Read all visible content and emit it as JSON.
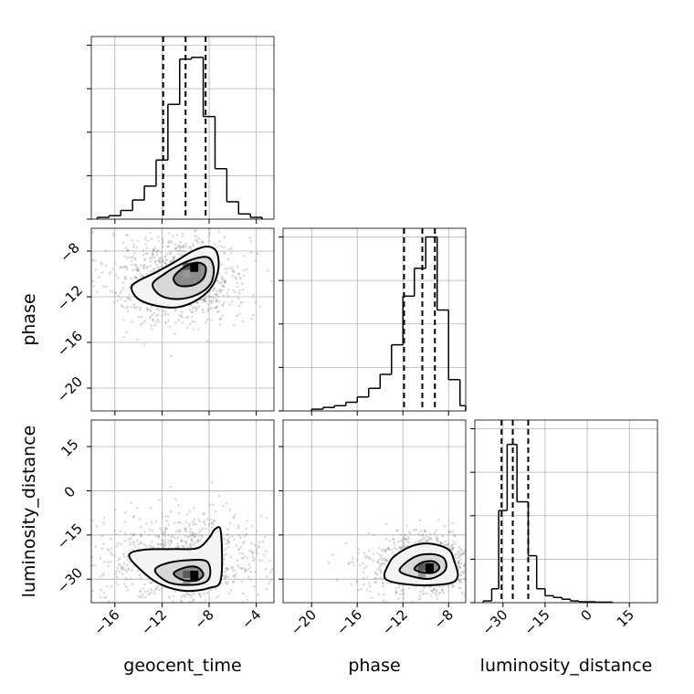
{
  "chart_data": {
    "type": "corner",
    "parameters": [
      {
        "name": "geocent_time",
        "xlim": [
          -18,
          -2.5
        ],
        "ticks": [
          -16,
          -12,
          -8,
          -4
        ],
        "quantiles": [
          -11.9,
          -10.0,
          -8.3
        ]
      },
      {
        "name": "phase",
        "xlim": [
          -22.5,
          -6.5
        ],
        "ticks": [
          -20,
          -16,
          -12,
          -8
        ],
        "quantiles": [
          -11.9,
          -10.3,
          -9.2
        ]
      },
      {
        "name": "luminosity_distance",
        "xlim": [
          -40,
          25
        ],
        "ticks": [
          -30,
          -15,
          0,
          15
        ],
        "quantiles": [
          -30.5,
          -26.5,
          -21.0
        ]
      }
    ],
    "histograms": [
      {
        "parameter": "geocent_time",
        "bin_edges": [
          -17.5,
          -16.5,
          -15.5,
          -14.5,
          -13.5,
          -12.5,
          -11.5,
          -10.5,
          -9.5,
          -8.5,
          -7.5,
          -6.5,
          -5.5,
          -4.5,
          -3.5
        ],
        "counts": [
          0.01,
          0.02,
          0.05,
          0.11,
          0.19,
          0.34,
          0.66,
          0.92,
          0.93,
          0.59,
          0.29,
          0.1,
          0.03,
          0.01
        ]
      },
      {
        "parameter": "phase",
        "bin_edges": [
          -20.0,
          -19.0,
          -18.0,
          -17.0,
          -16.0,
          -15.0,
          -14.0,
          -13.0,
          -12.0,
          -11.0,
          -10.0,
          -9.0,
          -8.0,
          -7.0,
          -6.5
        ],
        "counts": [
          0.01,
          0.02,
          0.03,
          0.05,
          0.08,
          0.13,
          0.21,
          0.38,
          0.66,
          0.82,
          1.0,
          0.58,
          0.18,
          0.03
        ]
      },
      {
        "parameter": "luminosity_distance",
        "bin_edges": [
          -37.0,
          -34.0,
          -31.5,
          -28.5,
          -25.0,
          -21.0,
          -18.0,
          -15.0,
          -12.0,
          -9.0,
          -6.0,
          -3.0,
          0.0,
          3.0,
          6.0,
          9.0
        ],
        "counts": [
          0.01,
          0.08,
          0.53,
          0.91,
          0.58,
          0.27,
          0.08,
          0.04,
          0.03,
          0.02,
          0.01,
          0.005,
          0.005,
          0.003,
          0.003
        ]
      }
    ],
    "hist_yticks": [
      0,
      0.25,
      0.5,
      0.75,
      1.0
    ],
    "pairs": [
      {
        "x": "geocent_time",
        "y": "phase",
        "ylim": [
          -22,
          -6
        ],
        "yticks": [
          -20,
          -16,
          -12,
          -8
        ],
        "mode": [
          -9.3,
          -9.5
        ],
        "contours": [
          [
            [
              -14.6,
              -11.2
            ],
            [
              -14.0,
              -10.6
            ],
            [
              -12.6,
              -9.9
            ],
            [
              -11.0,
              -9.0
            ],
            [
              -9.4,
              -8.0
            ],
            [
              -8.2,
              -7.6
            ],
            [
              -7.4,
              -8.0
            ],
            [
              -7.2,
              -9.4
            ],
            [
              -7.7,
              -11.0
            ],
            [
              -8.9,
              -12.2
            ],
            [
              -10.6,
              -12.9
            ],
            [
              -12.4,
              -12.8
            ],
            [
              -14.0,
              -12.2
            ]
          ],
          [
            [
              -12.8,
              -10.9
            ],
            [
              -11.8,
              -10.0
            ],
            [
              -10.5,
              -9.2
            ],
            [
              -9.0,
              -8.6
            ],
            [
              -8.0,
              -8.6
            ],
            [
              -7.6,
              -9.6
            ],
            [
              -7.9,
              -10.9
            ],
            [
              -9.0,
              -11.8
            ],
            [
              -10.6,
              -12.2
            ],
            [
              -12.1,
              -11.9
            ]
          ],
          [
            [
              -11.0,
              -10.3
            ],
            [
              -10.1,
              -9.4
            ],
            [
              -9.0,
              -9.0
            ],
            [
              -8.3,
              -9.4
            ],
            [
              -8.5,
              -10.4
            ],
            [
              -9.4,
              -11.0
            ],
            [
              -10.6,
              -11.0
            ]
          ]
        ]
      },
      {
        "x": "geocent_time",
        "y": "luminosity_distance",
        "ylim": [
          -38,
          24
        ],
        "yticks": [
          -30,
          -15,
          0,
          15
        ],
        "mode": [
          -9.3,
          -29
        ],
        "contours": [
          [
            [
              -14.8,
              -22
            ],
            [
              -13.5,
              -20
            ],
            [
              -11.0,
              -19.8
            ],
            [
              -9.0,
              -19.5
            ],
            [
              -8.0,
              -16.0
            ],
            [
              -7.5,
              -13.0
            ],
            [
              -7.0,
              -14.0
            ],
            [
              -7.0,
              -30.0
            ],
            [
              -8.0,
              -33.0
            ],
            [
              -10.0,
              -34.0
            ],
            [
              -12.0,
              -32.0
            ],
            [
              -13.5,
              -28.0
            ]
          ],
          [
            [
              -12.6,
              -27
            ],
            [
              -11.5,
              -24.5
            ],
            [
              -9.5,
              -23.5
            ],
            [
              -8.2,
              -24.0
            ],
            [
              -7.9,
              -28.0
            ],
            [
              -8.3,
              -31.0
            ],
            [
              -9.7,
              -32.0
            ],
            [
              -11.5,
              -31.0
            ]
          ],
          [
            [
              -11.0,
              -28.0
            ],
            [
              -10.0,
              -26.0
            ],
            [
              -9.0,
              -26.0
            ],
            [
              -8.5,
              -28.5
            ],
            [
              -9.1,
              -30.5
            ],
            [
              -10.3,
              -30.2
            ]
          ]
        ]
      },
      {
        "x": "phase",
        "y": "luminosity_distance",
        "ylim": [
          -38,
          24
        ],
        "yticks": [
          -30,
          -15,
          0,
          15
        ],
        "mode": [
          -9.7,
          -26.5
        ],
        "contours": [
          [
            [
              -13.5,
              -30.0
            ],
            [
              -13.2,
              -24.5
            ],
            [
              -12.5,
              -21.5
            ],
            [
              -11.0,
              -18.5
            ],
            [
              -9.5,
              -18.0
            ],
            [
              -8.0,
              -20.0
            ],
            [
              -7.5,
              -24.0
            ],
            [
              -7.2,
              -29.0
            ],
            [
              -8.0,
              -31.5
            ],
            [
              -11.0,
              -32.0
            ]
          ],
          [
            [
              -12.3,
              -27.0
            ],
            [
              -11.0,
              -22.5
            ],
            [
              -9.5,
              -21.5
            ],
            [
              -8.4,
              -23.0
            ],
            [
              -8.3,
              -27.0
            ],
            [
              -9.5,
              -29.8
            ],
            [
              -11.0,
              -29.3
            ]
          ],
          [
            [
              -11.0,
              -26.5
            ],
            [
              -10.3,
              -24.3
            ],
            [
              -9.3,
              -24.0
            ],
            [
              -8.8,
              -26.0
            ],
            [
              -9.3,
              -27.8
            ],
            [
              -10.3,
              -27.7
            ]
          ]
        ]
      }
    ],
    "legend": "none",
    "grid": true
  }
}
